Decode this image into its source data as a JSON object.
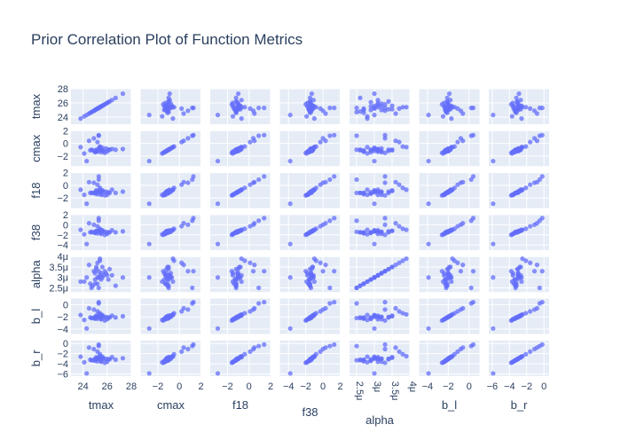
{
  "chart_data": {
    "type": "scatter",
    "title": "Prior Correlation Plot of Function Metrics",
    "variables": [
      "tmax",
      "cmax",
      "f18",
      "f38",
      "alpha",
      "b_l",
      "b_r"
    ],
    "axes": {
      "tmax": {
        "range": [
          23.0,
          28.0
        ],
        "ticks": [
          24,
          26,
          28
        ],
        "tick_labels": [
          "24",
          "26",
          "28"
        ]
      },
      "cmax": {
        "range": [
          -3.6,
          2.0
        ],
        "ticks": [
          -2,
          0,
          2
        ],
        "tick_labels": [
          "−2",
          "0",
          "2"
        ]
      },
      "f18": {
        "range": [
          -3.6,
          2.0
        ],
        "ticks": [
          -2,
          0,
          2
        ],
        "tick_labels": [
          "−2",
          "0",
          "2"
        ]
      },
      "f38": {
        "range": [
          -5.0,
          2.0
        ],
        "ticks": [
          -4,
          -2,
          0,
          2
        ],
        "tick_labels": [
          "−4",
          "−2",
          "0",
          "2"
        ]
      },
      "alpha": {
        "range": [
          2.3e-06,
          4e-06
        ],
        "ticks": [
          2.5e-06,
          3e-06,
          3.5e-06,
          4e-06
        ],
        "tick_labels": [
          "2.5μ",
          "3μ",
          "3.5μ",
          "4μ"
        ]
      },
      "b_l": {
        "range": [
          -4.8,
          1.0
        ],
        "ticks": [
          -4,
          -2,
          0
        ],
        "tick_labels": [
          "−4",
          "−2",
          "0"
        ]
      },
      "b_r": {
        "range": [
          -6.4,
          0.6
        ],
        "ticks": [
          -6,
          -4,
          -2,
          0
        ],
        "tick_labels": [
          "−6",
          "−4",
          "−2",
          "0"
        ]
      }
    },
    "grid": true,
    "legend": "none",
    "marker_color": "#636efa",
    "background_color": "#e5ecf6",
    "samples": {
      "tmax": [
        25.4,
        25.0,
        24.9,
        26.1,
        25.6,
        24.3,
        26.7,
        25.2,
        25.5,
        23.8,
        25.1,
        25.3,
        24.7,
        25.8,
        26.4,
        25.5,
        24.5,
        25.0,
        25.2,
        25.6,
        26.2,
        24.1,
        25.4,
        25.7,
        24.8,
        25.3,
        27.3,
        25.0,
        25.1,
        25.9,
        24.6,
        25.2,
        25.4,
        26.0,
        25.3
      ],
      "cmax": [
        -0.9,
        -1.3,
        0.8,
        -1.0,
        -1.1,
        -2.8,
        -1.0,
        0.2,
        -1.4,
        -0.6,
        -1.2,
        -0.8,
        -1.0,
        -1.5,
        -0.9,
        -1.1,
        0.4,
        -1.2,
        -1.3,
        -0.7,
        -1.0,
        -1.6,
        -0.5,
        -1.2,
        -1.1,
        1.3,
        -0.9,
        -1.4,
        -1.0,
        -0.8,
        -1.1,
        -1.2,
        -0.6,
        -1.3,
        1.2
      ],
      "f18": [
        -1.0,
        -1.2,
        0.4,
        -1.1,
        -0.9,
        -2.9,
        -1.2,
        0.1,
        -1.5,
        -0.7,
        -1.0,
        -0.9,
        -1.2,
        -1.6,
        -0.7,
        -1.3,
        0.5,
        -1.1,
        -1.4,
        -0.8,
        -1.2,
        -1.5,
        -0.4,
        -1.0,
        -1.2,
        1.4,
        -1.0,
        -1.3,
        -0.8,
        -1.0,
        -1.2,
        -1.1,
        -0.7,
        -1.5,
        0.9
      ],
      "f38": [
        -1.4,
        -1.6,
        0.0,
        -1.5,
        -1.2,
        -3.8,
        -1.5,
        -0.3,
        -1.8,
        -1.0,
        -1.3,
        -1.2,
        -1.4,
        -2.0,
        -1.1,
        -1.6,
        0.3,
        -1.4,
        -1.7,
        -1.1,
        -1.5,
        -1.9,
        -0.8,
        -1.3,
        -1.5,
        1.3,
        -1.3,
        -1.6,
        -1.2,
        -1.4,
        -1.5,
        -1.3,
        -1.0,
        -1.8,
        0.8
      ],
      "alpha": [
        3.1e-06,
        2.7e-06,
        3.3e-06,
        2.9e-06,
        3.5e-06,
        3e-06,
        2.6e-06,
        3.7e-06,
        3.2e-06,
        2.8e-06,
        3.4e-06,
        3e-06,
        2.5e-06,
        3.3e-06,
        3.1e-06,
        2.9e-06,
        3.6e-06,
        3.2e-06,
        2.7e-06,
        3e-06,
        3.4e-06,
        2.8e-06,
        3.8e-06,
        3.1e-06,
        2.6e-06,
        3.3e-06,
        3e-06,
        2.9e-06,
        3.5e-06,
        3.2e-06,
        2.7e-06,
        3e-06,
        3.9e-06,
        3.1e-06,
        2.5e-06
      ],
      "b_l": [
        -2.0,
        -2.2,
        -0.8,
        -2.1,
        -1.9,
        -3.9,
        -2.1,
        -1.1,
        -2.4,
        -1.7,
        -2.0,
        -1.8,
        -2.2,
        -2.6,
        -1.8,
        -2.3,
        -0.6,
        -2.0,
        -2.3,
        -1.7,
        -2.1,
        -2.5,
        -1.4,
        -2.0,
        -2.2,
        0.4,
        -1.9,
        -2.3,
        -1.8,
        -2.0,
        -2.1,
        -2.0,
        -1.6,
        -2.4,
        0.2
      ],
      "b_r": [
        -3.0,
        -3.3,
        -1.1,
        -3.1,
        -2.8,
        -5.9,
        -3.2,
        -1.6,
        -3.6,
        -2.6,
        -3.0,
        -2.8,
        -3.3,
        -3.8,
        -2.7,
        -3.4,
        -0.8,
        -3.0,
        -3.5,
        -2.6,
        -3.1,
        -3.7,
        -2.1,
        -3.0,
        -3.3,
        -0.2,
        -2.9,
        -3.4,
        -2.7,
        -3.0,
        -3.2,
        -3.0,
        -2.5,
        -3.6,
        -0.5
      ]
    }
  }
}
